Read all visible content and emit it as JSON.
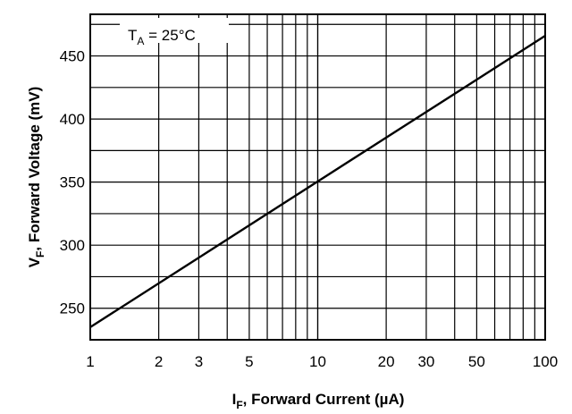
{
  "chart_data": {
    "type": "line",
    "x_scale": "log",
    "grid": true,
    "xlim": [
      1,
      100
    ],
    "ylim": [
      225,
      483
    ],
    "x_ticks": [
      1,
      2,
      3,
      5,
      10,
      20,
      30,
      50,
      100
    ],
    "x_tick_labels": [
      "1",
      "2",
      "3",
      "5",
      "10",
      "20",
      "30",
      "50",
      "100"
    ],
    "y_ticks": [
      250,
      300,
      350,
      400,
      450
    ],
    "y_tick_labels": [
      "250",
      "300",
      "350",
      "400",
      "450"
    ],
    "xlabel": {
      "main": "I",
      "sub": "F",
      "rest": ", Forward Current (µA)"
    },
    "ylabel": {
      "main": "V",
      "sub": "F",
      "rest": ", Forward Voltage (mV)"
    },
    "annotation": {
      "main": "T",
      "sub": "A",
      "rest": " = 25°C"
    },
    "series": [
      {
        "x": [
          1,
          100
        ],
        "y": [
          235,
          466
        ]
      }
    ]
  }
}
